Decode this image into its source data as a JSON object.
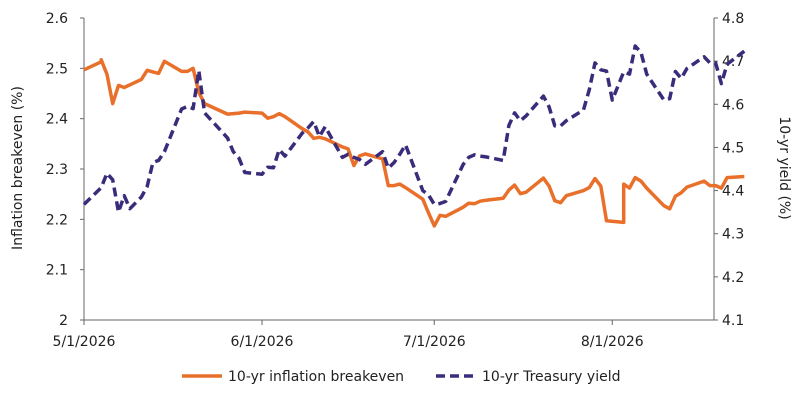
{
  "chart_data": {
    "type": "line",
    "title": "",
    "ylabel_left": "Inflation breakeven (%)",
    "ylabel_right": "10-yr yield (%)",
    "ylim_left": [
      2.0,
      2.6
    ],
    "ylim_right": [
      4.1,
      4.8
    ],
    "yticks_left": [
      "2",
      "2.1",
      "2.2",
      "2.3",
      "2.4",
      "2.5",
      "2.6"
    ],
    "yticks_right": [
      "4.1",
      "4.2",
      "4.3",
      "4.4",
      "4.5",
      "4.6",
      "4.7",
      "4.8"
    ],
    "x_start": "2026-05-01",
    "x_end": "2026-08-18",
    "xticks": [
      {
        "date": "2026-05-01",
        "label": "5/1/2026"
      },
      {
        "date": "2026-06-01",
        "label": "6/1/2026"
      },
      {
        "date": "2026-07-01",
        "label": "7/1/2026"
      },
      {
        "date": "2026-08-01",
        "label": "8/1/2026"
      }
    ],
    "grid": false,
    "legend_position": "bottom",
    "colors": {
      "breakeven": "#E8702A",
      "treasury": "#3A2C7A"
    },
    "series": [
      {
        "name": "10-yr inflation breakeven",
        "axis": "left",
        "style": "solid",
        "points": [
          [
            "2026-05-01",
            2.497
          ],
          [
            "2026-05-04",
            2.513
          ],
          [
            "2026-05-04",
            2.517
          ],
          [
            "2026-05-05",
            2.488
          ],
          [
            "2026-05-06",
            2.43
          ],
          [
            "2026-05-07",
            2.466
          ],
          [
            "2026-05-08",
            2.462
          ],
          [
            "2026-05-11",
            2.478
          ],
          [
            "2026-05-12",
            2.496
          ],
          [
            "2026-05-13",
            2.493
          ],
          [
            "2026-05-14",
            2.49
          ],
          [
            "2026-05-15",
            2.514
          ],
          [
            "2026-05-18",
            2.494
          ],
          [
            "2026-05-19",
            2.494
          ],
          [
            "2026-05-20",
            2.5
          ],
          [
            "2026-05-21",
            2.452
          ],
          [
            "2026-05-22",
            2.43
          ],
          [
            "2026-05-26",
            2.409
          ],
          [
            "2026-05-27",
            2.41
          ],
          [
            "2026-05-28",
            2.411
          ],
          [
            "2026-05-29",
            2.413
          ],
          [
            "2026-06-01",
            2.411
          ],
          [
            "2026-06-02",
            2.401
          ],
          [
            "2026-06-03",
            2.404
          ],
          [
            "2026-06-04",
            2.41
          ],
          [
            "2026-06-05",
            2.404
          ],
          [
            "2026-06-08",
            2.38
          ],
          [
            "2026-06-09",
            2.374
          ],
          [
            "2026-06-10",
            2.361
          ],
          [
            "2026-06-11",
            2.363
          ],
          [
            "2026-06-12",
            2.36
          ],
          [
            "2026-06-15",
            2.344
          ],
          [
            "2026-06-16",
            2.34
          ],
          [
            "2026-06-17",
            2.307
          ],
          [
            "2026-06-18",
            2.326
          ],
          [
            "2026-06-19",
            2.33
          ],
          [
            "2026-06-22",
            2.32
          ],
          [
            "2026-06-23",
            2.267
          ],
          [
            "2026-06-24",
            2.267
          ],
          [
            "2026-06-25",
            2.27
          ],
          [
            "2026-06-26",
            2.263
          ],
          [
            "2026-06-29",
            2.24
          ],
          [
            "2026-06-30",
            2.213
          ],
          [
            "2026-07-01",
            2.187
          ],
          [
            "2026-07-02",
            2.208
          ],
          [
            "2026-07-03",
            2.206
          ],
          [
            "2026-07-06",
            2.224
          ],
          [
            "2026-07-07",
            2.232
          ],
          [
            "2026-07-08",
            2.231
          ],
          [
            "2026-07-09",
            2.236
          ],
          [
            "2026-07-10",
            2.238
          ],
          [
            "2026-07-13",
            2.242
          ],
          [
            "2026-07-14",
            2.258
          ],
          [
            "2026-07-15",
            2.268
          ],
          [
            "2026-07-16",
            2.251
          ],
          [
            "2026-07-17",
            2.254
          ],
          [
            "2026-07-20",
            2.282
          ],
          [
            "2026-07-21",
            2.266
          ],
          [
            "2026-07-22",
            2.237
          ],
          [
            "2026-07-23",
            2.233
          ],
          [
            "2026-07-24",
            2.247
          ],
          [
            "2026-07-27",
            2.257
          ],
          [
            "2026-07-28",
            2.263
          ],
          [
            "2026-07-29",
            2.281
          ],
          [
            "2026-07-30",
            2.266
          ],
          [
            "2026-07-31",
            2.197
          ],
          [
            "2026-08-03",
            2.194
          ],
          [
            "2026-08-03",
            2.27
          ],
          [
            "2026-08-04",
            2.262
          ],
          [
            "2026-08-05",
            2.283
          ],
          [
            "2026-08-06",
            2.276
          ],
          [
            "2026-08-07",
            2.262
          ],
          [
            "2026-08-10",
            2.227
          ],
          [
            "2026-08-11",
            2.221
          ],
          [
            "2026-08-12",
            2.246
          ],
          [
            "2026-08-13",
            2.253
          ],
          [
            "2026-08-14",
            2.264
          ],
          [
            "2026-08-17",
            2.276
          ],
          [
            "2026-08-18",
            2.267
          ],
          [
            "2026-08-19",
            2.267
          ],
          [
            "2026-08-20",
            2.262
          ],
          [
            "2026-08-21",
            2.283
          ],
          [
            "2026-08-24",
            2.285
          ]
        ]
      },
      {
        "name": "10-yr Treasury yield",
        "axis": "right",
        "style": "dashed",
        "points": [
          [
            "2026-05-01",
            4.368
          ],
          [
            "2026-05-04",
            4.407
          ],
          [
            "2026-05-05",
            4.44
          ],
          [
            "2026-05-06",
            4.425
          ],
          [
            "2026-05-07",
            4.35
          ],
          [
            "2026-05-08",
            4.388
          ],
          [
            "2026-05-09",
            4.358
          ],
          [
            "2026-05-11",
            4.385
          ],
          [
            "2026-05-12",
            4.41
          ],
          [
            "2026-05-13",
            4.465
          ],
          [
            "2026-05-14",
            4.47
          ],
          [
            "2026-05-15",
            4.49
          ],
          [
            "2026-05-18",
            4.589
          ],
          [
            "2026-05-19",
            4.595
          ],
          [
            "2026-05-20",
            4.59
          ],
          [
            "2026-05-21",
            4.678
          ],
          [
            "2026-05-22",
            4.58
          ],
          [
            "2026-05-26",
            4.522
          ],
          [
            "2026-05-27",
            4.49
          ],
          [
            "2026-05-28",
            4.475
          ],
          [
            "2026-05-29",
            4.442
          ],
          [
            "2026-06-01",
            4.438
          ],
          [
            "2026-06-02",
            4.454
          ],
          [
            "2026-06-03",
            4.453
          ],
          [
            "2026-06-04",
            4.495
          ],
          [
            "2026-06-05",
            4.48
          ],
          [
            "2026-06-08",
            4.533
          ],
          [
            "2026-06-09",
            4.545
          ],
          [
            "2026-06-10",
            4.56
          ],
          [
            "2026-06-11",
            4.525
          ],
          [
            "2026-06-12",
            4.548
          ],
          [
            "2026-06-15",
            4.477
          ],
          [
            "2026-06-16",
            4.484
          ],
          [
            "2026-06-17",
            4.477
          ],
          [
            "2026-06-18",
            4.472
          ],
          [
            "2026-06-19",
            4.461
          ],
          [
            "2026-06-22",
            4.49
          ],
          [
            "2026-06-23",
            4.452
          ],
          [
            "2026-06-24",
            4.465
          ],
          [
            "2026-06-25",
            4.484
          ],
          [
            "2026-06-26",
            4.506
          ],
          [
            "2026-06-29",
            4.4
          ],
          [
            "2026-06-30",
            4.39
          ],
          [
            "2026-07-01",
            4.368
          ],
          [
            "2026-07-02",
            4.37
          ],
          [
            "2026-07-03",
            4.375
          ],
          [
            "2026-07-06",
            4.46
          ],
          [
            "2026-07-07",
            4.477
          ],
          [
            "2026-07-08",
            4.483
          ],
          [
            "2026-07-09",
            4.48
          ],
          [
            "2026-07-10",
            4.478
          ],
          [
            "2026-07-13",
            4.47
          ],
          [
            "2026-07-14",
            4.551
          ],
          [
            "2026-07-15",
            4.58
          ],
          [
            "2026-07-16",
            4.562
          ],
          [
            "2026-07-17",
            4.573
          ],
          [
            "2026-07-20",
            4.619
          ],
          [
            "2026-07-21",
            4.594
          ],
          [
            "2026-07-22",
            4.55
          ],
          [
            "2026-07-23",
            4.55
          ],
          [
            "2026-07-24",
            4.562
          ],
          [
            "2026-07-27",
            4.587
          ],
          [
            "2026-07-28",
            4.634
          ],
          [
            "2026-07-29",
            4.696
          ],
          [
            "2026-07-30",
            4.68
          ],
          [
            "2026-07-31",
            4.677
          ],
          [
            "2026-08-01",
            4.61
          ],
          [
            "2026-08-03",
            4.675
          ],
          [
            "2026-08-04",
            4.67
          ],
          [
            "2026-08-05",
            4.735
          ],
          [
            "2026-08-06",
            4.72
          ],
          [
            "2026-08-07",
            4.67
          ],
          [
            "2026-08-10",
            4.61
          ],
          [
            "2026-08-11",
            4.613
          ],
          [
            "2026-08-12",
            4.676
          ],
          [
            "2026-08-13",
            4.66
          ],
          [
            "2026-08-14",
            4.683
          ],
          [
            "2026-08-17",
            4.71
          ],
          [
            "2026-08-18",
            4.696
          ],
          [
            "2026-08-19",
            4.696
          ],
          [
            "2026-08-20",
            4.648
          ],
          [
            "2026-08-21",
            4.693
          ],
          [
            "2026-08-24",
            4.723
          ]
        ]
      }
    ]
  }
}
